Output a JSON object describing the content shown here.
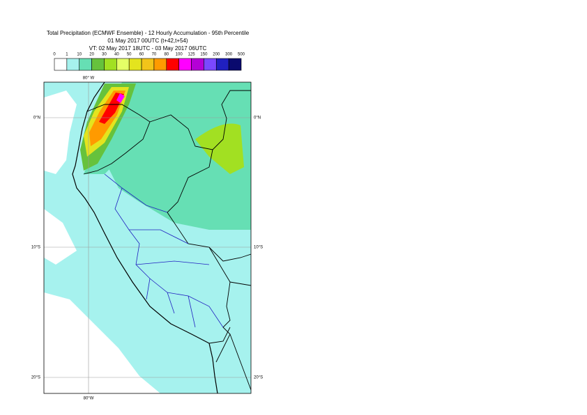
{
  "header": {
    "title": "Total Precipitation (ECMWF Ensemble) - 12 Hourly Accumulation - 95th Percentile",
    "run": "01 May 2017 00UTC (t+42,t+54)",
    "valid": "VT: 02 May 2017 18UTC - 03 May 2017 06UTC"
  },
  "legend": {
    "labels": [
      0,
      1,
      10,
      20,
      30,
      40,
      50,
      60,
      70,
      80,
      100,
      125,
      150,
      200,
      300,
      500
    ],
    "colors": [
      "#ffffff",
      "#a6f2ee",
      "#66dfb4",
      "#66c23c",
      "#a2e022",
      "#e4ff66",
      "#e4e41e",
      "#f2c41a",
      "#ff9a00",
      "#ff0000",
      "#ff00ff",
      "#b400d6",
      "#7a48ff",
      "#2020c0",
      "#0a0a6e"
    ]
  },
  "map": {
    "lon_labels": [
      "80° W",
      "80°W"
    ],
    "lat_labels": [
      "0°N",
      "10°S",
      "20°S"
    ]
  }
}
